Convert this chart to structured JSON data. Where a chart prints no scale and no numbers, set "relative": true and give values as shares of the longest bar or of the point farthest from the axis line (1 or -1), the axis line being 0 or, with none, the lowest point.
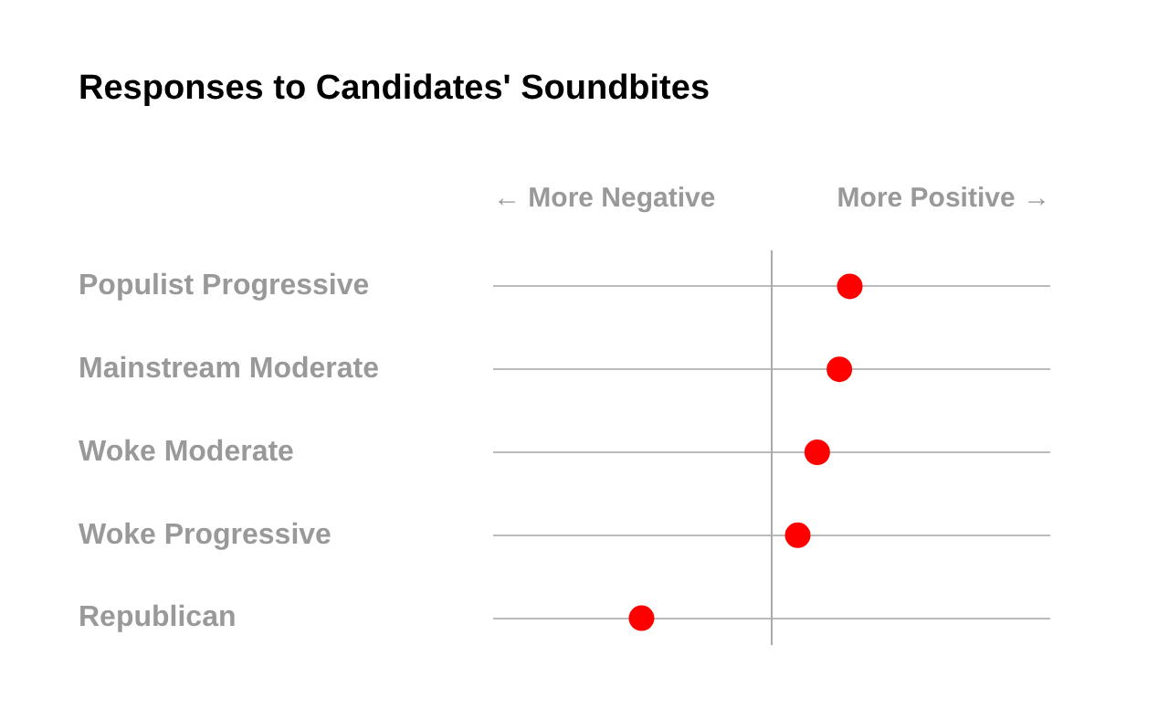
{
  "chart_data": {
    "type": "scatter",
    "title": "Responses to Candidates' Soundbites",
    "categories": [
      "Populist Progressive",
      "Mainstream Moderate",
      "Woke Moderate",
      "Woke Progressive",
      "Republican"
    ],
    "values": [
      0.6,
      0.52,
      0.35,
      0.2,
      -1
    ],
    "color": "#ff0000",
    "orientation": "horizontal",
    "relative": true,
    "marker": "circle",
    "grid": "y",
    "legend": false,
    "annotations": [
      "← More Negative",
      "More Positive →"
    ]
  }
}
